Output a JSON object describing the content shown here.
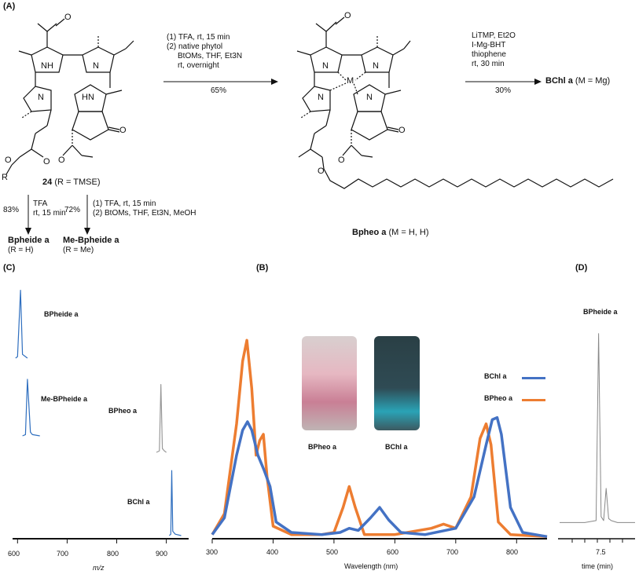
{
  "panels": {
    "A": "(A)",
    "B": "(B)",
    "C": "(C)",
    "D": "(D)"
  },
  "scheme": {
    "step1_conditions": [
      "(1) TFA, rt, 15 min",
      "(2) native phytol",
      "BtOMs, THF, Et3N",
      "rt, overnight"
    ],
    "step1_yield": "65%",
    "step2_conditions": [
      "LiTMP, Et2O",
      "I-Mg-BHT",
      "thiophene",
      "rt, 30 min"
    ],
    "step2_yield": "30%",
    "product_bchl": "BChl a",
    "product_bchl_note": "(M = Mg)",
    "compound24_num": "24",
    "compound24_note": "(R = TMSE)",
    "bpheo_name": "Bpheo a",
    "bpheo_note": "(M = H, H)",
    "branch1_yield": "83%",
    "branch1_conditions": [
      "TFA",
      "rt, 15 min"
    ],
    "branch1_product": "Bpheide a",
    "branch1_note": "(R = H)",
    "branch2_yield": "72%",
    "branch2_conditions": [
      "(1) TFA, rt, 15 min",
      "(2) BtOMs, THF, Et3N, MeOH"
    ],
    "branch2_product": "Me-Bpheide a",
    "branch2_note": "(R = Me)",
    "atoms": {
      "NH": "NH",
      "HN": "HN",
      "N": "N",
      "M": "M",
      "O": "O",
      "R": "R"
    }
  },
  "panel_c": {
    "labels": [
      "BPheide a",
      "Me-BPheide a",
      "BPheo a",
      "BChl a"
    ],
    "xlabel": "m/z",
    "xticks": [
      "600",
      "700",
      "800",
      "900"
    ]
  },
  "panel_b": {
    "xlabel": "Wavelength (nm)",
    "xticks": [
      "300",
      "400",
      "500",
      "600",
      "700",
      "800"
    ],
    "legend": [
      "BChl a",
      "BPheo a"
    ],
    "photo_labels": [
      "BPheo a",
      "BChl a"
    ],
    "colors": {
      "bchl": "#4472C4",
      "bpheo": "#ED7D31"
    }
  },
  "panel_d": {
    "title": "BPheide a",
    "xlabel": "time (min)",
    "xtick": "7.5"
  },
  "chart_data": [
    {
      "type": "line",
      "title": "",
      "xlabel": "Wavelength (nm)",
      "ylabel": "",
      "xlim": [
        300,
        850
      ],
      "series": [
        {
          "name": "BChl a",
          "x": [
            300,
            320,
            340,
            350,
            358,
            365,
            375,
            385,
            395,
            405,
            430,
            480,
            510,
            525,
            540,
            560,
            575,
            590,
            610,
            650,
            700,
            730,
            750,
            760,
            768,
            775,
            790,
            810,
            850
          ],
          "values": [
            0.02,
            0.1,
            0.4,
            0.52,
            0.56,
            0.52,
            0.4,
            0.33,
            0.25,
            0.08,
            0.03,
            0.02,
            0.03,
            0.05,
            0.04,
            0.1,
            0.15,
            0.09,
            0.03,
            0.02,
            0.05,
            0.2,
            0.45,
            0.57,
            0.58,
            0.5,
            0.15,
            0.03,
            0.01
          ]
        },
        {
          "name": "BPheo a",
          "x": [
            300,
            320,
            340,
            350,
            357,
            365,
            372,
            378,
            384,
            390,
            400,
            430,
            480,
            500,
            515,
            525,
            535,
            550,
            600,
            660,
            680,
            700,
            725,
            740,
            750,
            758,
            770,
            790,
            850
          ],
          "values": [
            0.02,
            0.12,
            0.55,
            0.85,
            0.95,
            0.72,
            0.4,
            0.47,
            0.5,
            0.3,
            0.06,
            0.02,
            0.02,
            0.03,
            0.15,
            0.25,
            0.15,
            0.02,
            0.02,
            0.05,
            0.07,
            0.05,
            0.2,
            0.48,
            0.55,
            0.45,
            0.08,
            0.02,
            0.01
          ]
        }
      ]
    },
    {
      "type": "line",
      "title": "BPheide a",
      "xlabel": "time (min)",
      "ylabel": "",
      "series": [
        {
          "name": "",
          "x": [
            6.0,
            7.0,
            7.45,
            7.55,
            7.65,
            7.75,
            7.85,
            7.95,
            8.05,
            8.3,
            9.0
          ],
          "values": [
            0.01,
            0.01,
            0.02,
            0.95,
            0.04,
            0.02,
            0.18,
            0.03,
            0.02,
            0.01,
            0.01
          ]
        }
      ]
    },
    {
      "type": "line",
      "title": "",
      "xlabel": "m/z",
      "ylabel": "",
      "xlim": [
        590,
        945
      ],
      "series": [
        {
          "name": "BPheide a",
          "x": [
            596,
            600,
            606,
            610,
            616,
            620
          ],
          "values": [
            0.0,
            0.02,
            0.9,
            0.05,
            0.02,
            0.0
          ]
        },
        {
          "name": "Me-BPheide a",
          "x": [
            610,
            616,
            620,
            626,
            630,
            645
          ],
          "values": [
            0.0,
            0.02,
            0.9,
            0.06,
            0.02,
            0.0
          ]
        },
        {
          "name": "BPheo a",
          "x": [
            880,
            886,
            889,
            892,
            896,
            900
          ],
          "values": [
            0.0,
            0.02,
            0.9,
            0.05,
            0.02,
            0.0
          ]
        },
        {
          "name": "BChl a",
          "x": [
            906,
            909,
            911,
            913,
            918,
            930
          ],
          "values": [
            0.0,
            0.02,
            0.9,
            0.06,
            0.02,
            0.0
          ]
        }
      ]
    }
  ]
}
